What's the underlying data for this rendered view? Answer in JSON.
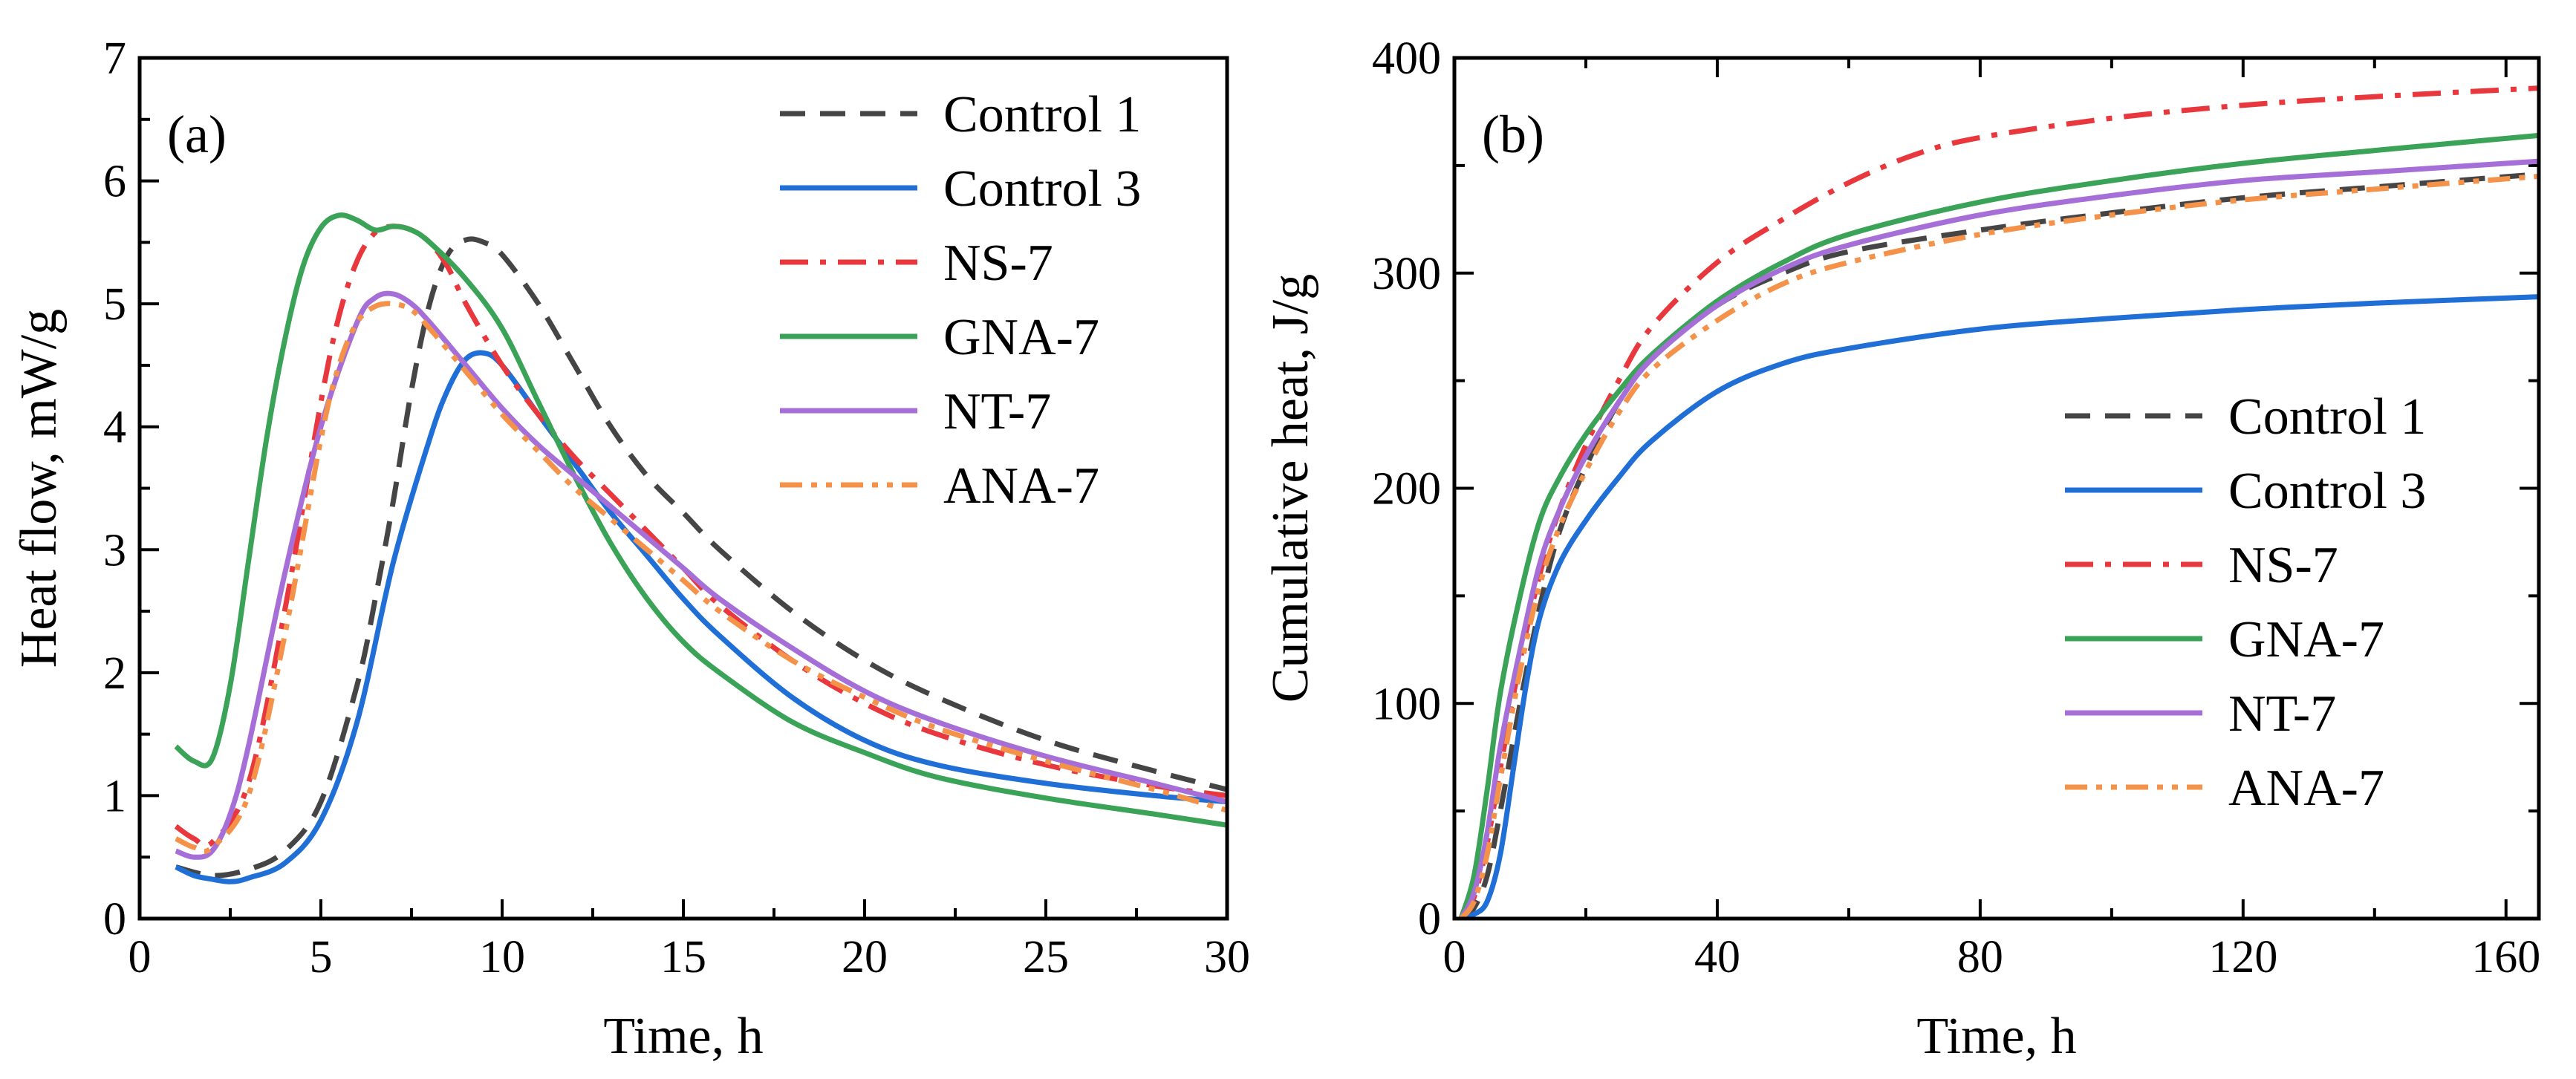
{
  "chart_data": [
    {
      "type": "line",
      "panel_label": "(a)",
      "xlabel": "Time, h",
      "ylabel": "Heat flow, mW/g",
      "xlim": [
        0,
        30
      ],
      "ylim": [
        0,
        7
      ],
      "xticks": [
        "0",
        "5",
        "10",
        "15",
        "20",
        "25",
        "30"
      ],
      "yticks": [
        "0",
        "1",
        "2",
        "3",
        "4",
        "5",
        "6",
        "7"
      ],
      "legend_position": "top-right",
      "series": [
        {
          "name": "Control 1",
          "color": "#454545",
          "dash": "dash",
          "x": [
            1,
            2,
            3,
            4,
            5,
            6,
            6.5,
            7,
            7.5,
            8,
            8.5,
            9,
            9.5,
            10,
            11,
            12,
            13,
            14,
            15,
            16,
            18,
            20,
            22,
            25,
            28,
            30
          ],
          "y": [
            0.42,
            0.35,
            0.4,
            0.55,
            0.95,
            1.9,
            2.6,
            3.4,
            4.3,
            5.0,
            5.4,
            5.52,
            5.5,
            5.4,
            5.0,
            4.5,
            4.0,
            3.6,
            3.3,
            3.0,
            2.5,
            2.1,
            1.8,
            1.45,
            1.2,
            1.05
          ]
        },
        {
          "name": "Control 3",
          "color": "#1f6fd6",
          "dash": "solid",
          "x": [
            1,
            1.5,
            2,
            2.5,
            3,
            4,
            5,
            6,
            7,
            8,
            8.5,
            9,
            9.5,
            10,
            11,
            12,
            13,
            14,
            15,
            16,
            18,
            20,
            22,
            25,
            28,
            30
          ],
          "y": [
            0.42,
            0.35,
            0.32,
            0.3,
            0.33,
            0.45,
            0.8,
            1.6,
            2.9,
            3.9,
            4.3,
            4.55,
            4.6,
            4.5,
            4.1,
            3.7,
            3.3,
            2.95,
            2.6,
            2.3,
            1.8,
            1.45,
            1.25,
            1.1,
            1.0,
            0.95
          ]
        },
        {
          "name": "NS-7",
          "color": "#e8383d",
          "dash": "dashdot",
          "x": [
            1,
            1.5,
            2,
            3,
            4,
            5,
            5.5,
            6,
            6.5,
            7,
            7.5,
            8,
            8.5,
            9,
            10,
            11,
            12,
            13,
            14,
            15,
            16,
            18,
            20,
            22,
            25,
            28,
            30
          ],
          "y": [
            0.75,
            0.65,
            0.62,
            1.1,
            2.5,
            4.2,
            4.9,
            5.35,
            5.58,
            5.63,
            5.6,
            5.5,
            5.3,
            5.0,
            4.5,
            4.1,
            3.75,
            3.45,
            3.15,
            2.85,
            2.55,
            2.1,
            1.75,
            1.5,
            1.25,
            1.08,
            1.0
          ]
        },
        {
          "name": "GNA-7",
          "color": "#3aa357",
          "dash": "solid",
          "x": [
            1,
            1.5,
            2,
            2.5,
            3,
            3.5,
            4,
            4.5,
            5,
            5.5,
            6,
            6.5,
            7,
            7.5,
            8,
            9,
            10,
            11,
            12,
            13,
            14,
            15,
            16,
            18,
            20,
            22,
            25,
            28,
            30
          ],
          "y": [
            1.4,
            1.28,
            1.3,
            1.9,
            2.9,
            3.9,
            4.7,
            5.3,
            5.62,
            5.72,
            5.68,
            5.6,
            5.63,
            5.6,
            5.5,
            5.2,
            4.8,
            4.2,
            3.6,
            3.05,
            2.6,
            2.25,
            2.0,
            1.6,
            1.35,
            1.15,
            0.98,
            0.85,
            0.76
          ]
        },
        {
          "name": "NT-7",
          "color": "#a66fd8",
          "dash": "solid",
          "x": [
            1,
            1.5,
            2,
            2.5,
            3,
            4,
            5,
            6,
            6.5,
            7,
            7.5,
            8,
            9,
            10,
            11,
            12,
            13,
            14,
            15,
            16,
            18,
            20,
            22,
            25,
            28,
            30
          ],
          "y": [
            0.55,
            0.5,
            0.55,
            0.85,
            1.4,
            2.8,
            4.0,
            4.85,
            5.05,
            5.08,
            5.0,
            4.85,
            4.5,
            4.15,
            3.85,
            3.6,
            3.35,
            3.1,
            2.85,
            2.6,
            2.2,
            1.85,
            1.6,
            1.32,
            1.1,
            0.95
          ]
        },
        {
          "name": "ANA-7",
          "color": "#f5924a",
          "dash": "dashdotdot",
          "x": [
            1,
            1.5,
            2,
            3,
            4,
            5,
            5.5,
            6,
            6.5,
            7,
            7.5,
            8,
            9,
            10,
            11,
            12,
            13,
            14,
            15,
            16,
            18,
            20,
            22,
            25,
            28,
            30
          ],
          "y": [
            0.65,
            0.58,
            0.58,
            1.0,
            2.3,
            3.9,
            4.5,
            4.85,
            4.98,
            5.0,
            4.95,
            4.8,
            4.45,
            4.1,
            3.8,
            3.5,
            3.25,
            3.0,
            2.75,
            2.5,
            2.1,
            1.8,
            1.55,
            1.28,
            1.05,
            0.88
          ]
        }
      ]
    },
    {
      "type": "line",
      "panel_label": "(b)",
      "xlabel": "Time, h",
      "ylabel": "Cumulative heat, J/g",
      "xlim": [
        0,
        165
      ],
      "ylim": [
        0,
        400
      ],
      "xticks": [
        "0",
        "40",
        "80",
        "120",
        "160"
      ],
      "xtick_values": [
        0,
        40,
        80,
        120,
        160
      ],
      "yticks": [
        "0",
        "100",
        "200",
        "300",
        "400"
      ],
      "ytick_values": [
        0,
        100,
        200,
        300,
        400
      ],
      "legend_position": "center-right",
      "series": [
        {
          "name": "Control 1",
          "color": "#454545",
          "dash": "dash",
          "x": [
            1,
            3,
            5,
            7,
            10,
            13,
            16,
            20,
            25,
            30,
            40,
            50,
            60,
            80,
            100,
            120,
            140,
            165
          ],
          "y": [
            0,
            5,
            20,
            50,
            100,
            145,
            180,
            210,
            240,
            260,
            285,
            300,
            310,
            320,
            328,
            335,
            340,
            346
          ]
        },
        {
          "name": "Control 3",
          "color": "#1f6fd6",
          "dash": "solid",
          "x": [
            1,
            3,
            5,
            7,
            9,
            11,
            13,
            16,
            20,
            25,
            30,
            40,
            50,
            60,
            80,
            100,
            120,
            140,
            165
          ],
          "y": [
            0,
            2,
            8,
            30,
            70,
            110,
            140,
            165,
            185,
            205,
            222,
            245,
            258,
            265,
            274,
            279,
            283,
            286,
            289
          ]
        },
        {
          "name": "NS-7",
          "color": "#e8383d",
          "dash": "dashdot",
          "x": [
            1,
            3,
            5,
            7,
            10,
            13,
            16,
            20,
            25,
            30,
            40,
            50,
            60,
            70,
            80,
            100,
            120,
            140,
            165
          ],
          "y": [
            0,
            10,
            35,
            70,
            120,
            160,
            190,
            220,
            250,
            275,
            305,
            325,
            342,
            355,
            363,
            372,
            378,
            382,
            386
          ]
        },
        {
          "name": "GNA-7",
          "color": "#3aa357",
          "dash": "solid",
          "x": [
            1,
            3,
            5,
            7,
            10,
            13,
            16,
            20,
            25,
            30,
            40,
            50,
            60,
            80,
            100,
            120,
            140,
            165
          ],
          "y": [
            0,
            20,
            60,
            105,
            150,
            185,
            205,
            225,
            245,
            262,
            287,
            305,
            318,
            333,
            343,
            351,
            357,
            364
          ]
        },
        {
          "name": "NT-7",
          "color": "#a66fd8",
          "dash": "solid",
          "x": [
            1,
            3,
            5,
            7,
            10,
            13,
            16,
            20,
            25,
            30,
            40,
            50,
            60,
            80,
            100,
            120,
            140,
            165
          ],
          "y": [
            0,
            12,
            40,
            80,
            125,
            165,
            190,
            215,
            240,
            260,
            285,
            302,
            313,
            327,
            336,
            343,
            347,
            352
          ]
        },
        {
          "name": "ANA-7",
          "color": "#f5924a",
          "dash": "dashdotdot",
          "x": [
            1,
            3,
            5,
            7,
            10,
            13,
            16,
            20,
            25,
            30,
            40,
            50,
            60,
            80,
            100,
            120,
            140,
            165
          ],
          "y": [
            0,
            8,
            30,
            65,
            115,
            155,
            182,
            208,
            235,
            255,
            278,
            295,
            305,
            318,
            327,
            334,
            339,
            345
          ]
        }
      ]
    }
  ]
}
